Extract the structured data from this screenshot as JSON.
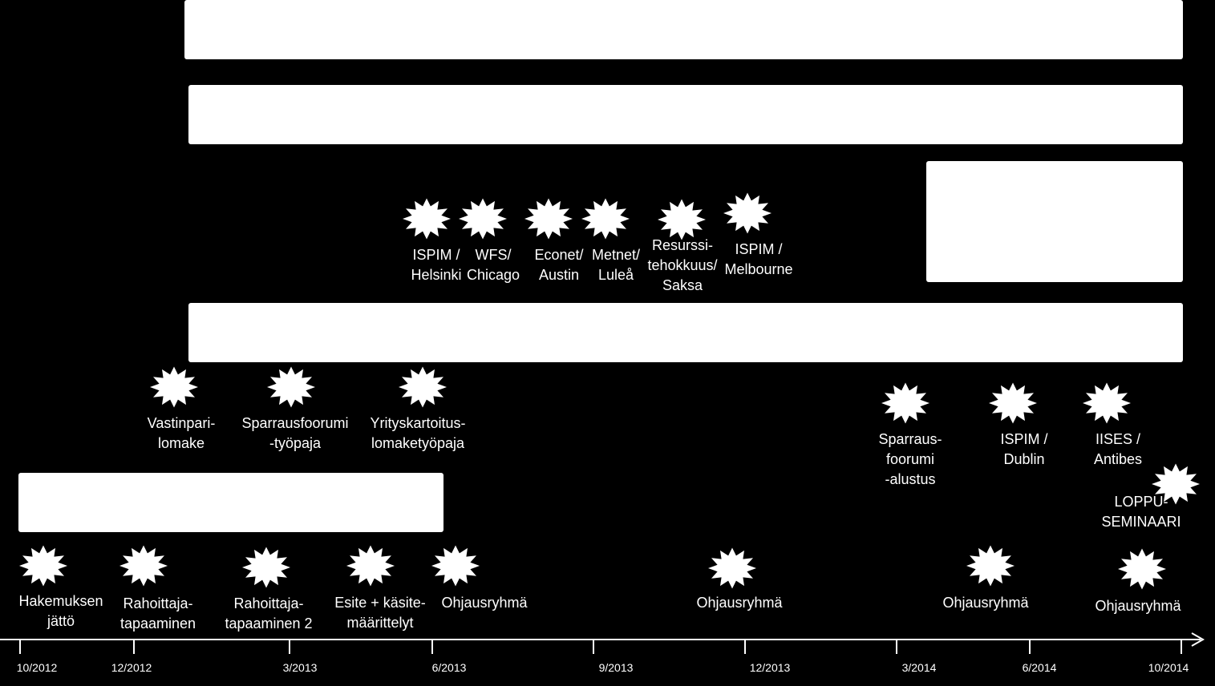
{
  "colors": {
    "background": "#000000",
    "foreground": "#ffffff"
  },
  "icons": {
    "event_marker": "starburst-icon"
  },
  "top_events": [
    {
      "id": "ispim-helsinki",
      "lines": [
        "ISPIM /",
        "Helsinki"
      ]
    },
    {
      "id": "wfs-chicago",
      "lines": [
        "WFS/",
        "Chicago"
      ]
    },
    {
      "id": "econet-austin",
      "lines": [
        "Econet/",
        "Austin"
      ]
    },
    {
      "id": "metnet-lulea",
      "lines": [
        "Metnet/",
        "Luleå"
      ]
    },
    {
      "id": "resurssitehokkuus-saksa",
      "lines": [
        "Resurssi-",
        "tehokkuus/",
        "Saksa"
      ]
    },
    {
      "id": "ispim-melbourne",
      "lines": [
        "ISPIM /",
        "Melbourne"
      ]
    }
  ],
  "middle_events": [
    {
      "id": "vastinparilomake",
      "lines": [
        "Vastinpari-",
        "lomake"
      ]
    },
    {
      "id": "sparrausfoorumi-tyopaja",
      "lines": [
        "Sparrausfoorumi",
        "-työpaja"
      ]
    },
    {
      "id": "yrityskartoitus",
      "lines": [
        "Yrityskartoitus-",
        "lomaketyöpaja"
      ]
    },
    {
      "id": "sparrausfoorumi-alustus",
      "lines": [
        "Sparraus-",
        "foorumi",
        "-alustus"
      ]
    },
    {
      "id": "ispim-dublin",
      "lines": [
        "ISPIM /",
        "Dublin"
      ]
    },
    {
      "id": "iises-antibes",
      "lines": [
        "IISES /",
        "Antibes"
      ]
    },
    {
      "id": "loppuseminaari",
      "lines": [
        "LOPPU-",
        "SEMINAARI"
      ]
    }
  ],
  "bottom_events": [
    {
      "id": "hakemuksen-jatto",
      "lines": [
        "Hakemuksen",
        "jättö"
      ]
    },
    {
      "id": "rahoittajatapaaminen",
      "lines": [
        "Rahoittaja-",
        "tapaaminen"
      ]
    },
    {
      "id": "rahoittajatapaaminen-2",
      "lines": [
        "Rahoittaja-",
        "tapaaminen 2"
      ]
    },
    {
      "id": "esite-kasitemaarittelyt",
      "lines": [
        "Esite + käsite-",
        "määrittelyt"
      ]
    },
    {
      "id": "ohjausryhma-1",
      "lines": [
        "Ohjausryhmä"
      ]
    },
    {
      "id": "ohjausryhma-2",
      "lines": [
        "Ohjausryhmä"
      ]
    },
    {
      "id": "ohjausryhma-3",
      "lines": [
        "Ohjausryhmä"
      ]
    },
    {
      "id": "ohjausryhma-4",
      "lines": [
        "Ohjausryhmä"
      ]
    }
  ],
  "axis": {
    "ticks": [
      "10/2012",
      "12/2012",
      "3/2013",
      "6/2013",
      "9/2013",
      "12/2013",
      "3/2014",
      "6/2014",
      "10/2014"
    ]
  }
}
